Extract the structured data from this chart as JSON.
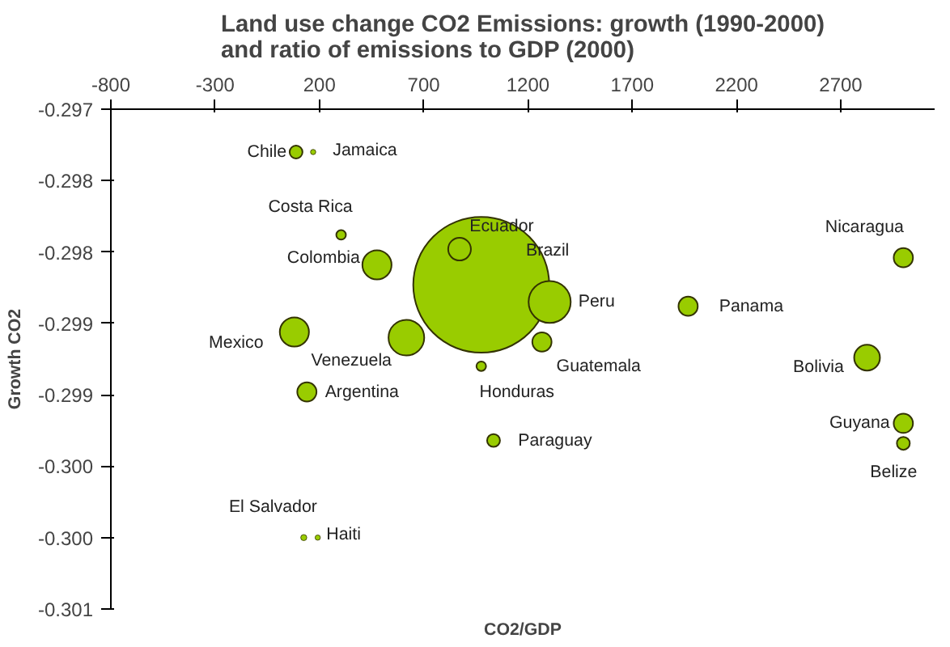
{
  "chart_data": {
    "type": "bubble",
    "title": "Land use change CO2 Emissions: growth (1990-2000)\nand ratio of emissions to GDP (2000)",
    "xlabel": "CO2/GDP",
    "ylabel": "Growth CO2",
    "series": [
      {
        "name": "Chile",
        "color": "#99cc00",
        "x": [
          88
        ],
        "values": [
          -0.2973
        ],
        "sizes": [
          0.009
        ]
      },
      {
        "name": "Jamaica",
        "color": "#99cc00",
        "x": [
          170
        ],
        "values": [
          -0.2973
        ],
        "sizes": [
          0.0015
        ]
      },
      {
        "name": "Costa Rica",
        "color": "#99cc00",
        "x": [
          304
        ],
        "values": [
          -0.29788
        ],
        "sizes": [
          0.005
        ]
      },
      {
        "name": "Colombia",
        "color": "#99cc00",
        "x": [
          476
        ],
        "values": [
          -0.29809
        ],
        "sizes": [
          0.046
        ]
      },
      {
        "name": "Ecuador",
        "color": "#99cc00",
        "x": [
          872
        ],
        "values": [
          -0.29798
        ],
        "sizes": [
          0.028
        ]
      },
      {
        "name": "Brazil",
        "color": "#99cc00",
        "x": [
          976
        ],
        "values": [
          -0.29823
        ],
        "sizes": [
          1
        ]
      },
      {
        "name": "Peru",
        "color": "#99cc00",
        "x": [
          1304
        ],
        "values": [
          -0.29835
        ],
        "sizes": [
          0.096
        ]
      },
      {
        "name": "Panama",
        "color": "#99cc00",
        "x": [
          1968
        ],
        "values": [
          -0.29838
        ],
        "sizes": [
          0.02
        ]
      },
      {
        "name": "Nicaragua",
        "color": "#99cc00",
        "x": [
          3000
        ],
        "values": [
          -0.29804
        ],
        "sizes": [
          0.02
        ]
      },
      {
        "name": "Mexico",
        "color": "#99cc00",
        "x": [
          80
        ],
        "values": [
          -0.29856
        ],
        "sizes": [
          0.046
        ]
      },
      {
        "name": "Venezuela",
        "color": "#99cc00",
        "x": [
          617
        ],
        "values": [
          -0.2986
        ],
        "sizes": [
          0.069
        ]
      },
      {
        "name": "Argentina",
        "color": "#99cc00",
        "x": [
          140
        ],
        "values": [
          -0.29898
        ],
        "sizes": [
          0.02
        ]
      },
      {
        "name": "Guatemala",
        "color": "#99cc00",
        "x": [
          1267
        ],
        "values": [
          -0.29863
        ],
        "sizes": [
          0.02
        ]
      },
      {
        "name": "Honduras",
        "color": "#99cc00",
        "x": [
          976
        ],
        "values": [
          -0.2988
        ],
        "sizes": [
          0.005
        ]
      },
      {
        "name": "Paraguay",
        "color": "#99cc00",
        "x": [
          1035
        ],
        "values": [
          -0.29932
        ],
        "sizes": [
          0.009
        ]
      },
      {
        "name": "Bolivia",
        "color": "#99cc00",
        "x": [
          2826
        ],
        "values": [
          -0.29874
        ],
        "sizes": [
          0.036
        ]
      },
      {
        "name": "Guyana",
        "color": "#99cc00",
        "x": [
          3000
        ],
        "values": [
          -0.2992
        ],
        "sizes": [
          0.02
        ]
      },
      {
        "name": "Belize",
        "color": "#99cc00",
        "x": [
          3000
        ],
        "values": [
          -0.29934
        ],
        "sizes": [
          0.009
        ]
      },
      {
        "name": "El Salvador",
        "color": "#99cc00",
        "x": [
          125
        ],
        "values": [
          -0.3
        ],
        "sizes": [
          0.002
        ]
      },
      {
        "name": "Haiti",
        "color": "#99cc00",
        "x": [
          192
        ],
        "values": [
          -0.3
        ],
        "sizes": [
          0.0015
        ]
      }
    ],
    "xlim": [
      -800,
      3150
    ],
    "xticks": [
      -800,
      -300,
      200,
      700,
      1200,
      1700,
      2200,
      2700
    ],
    "ylim": [
      -0.3005,
      -0.297
    ],
    "yticks": [
      {
        "value": -0.297,
        "label": "-0.297"
      },
      {
        "value": -0.2975,
        "label": "-0.298"
      },
      {
        "value": -0.298,
        "label": "-0.298"
      },
      {
        "value": -0.2985,
        "label": "-0.299"
      },
      {
        "value": -0.299,
        "label": "-0.299"
      },
      {
        "value": -0.2995,
        "label": "-0.300"
      },
      {
        "value": -0.3,
        "label": "-0.300"
      },
      {
        "value": -0.3005,
        "label": "-0.301"
      }
    ],
    "grid": false,
    "marker": "circle"
  }
}
